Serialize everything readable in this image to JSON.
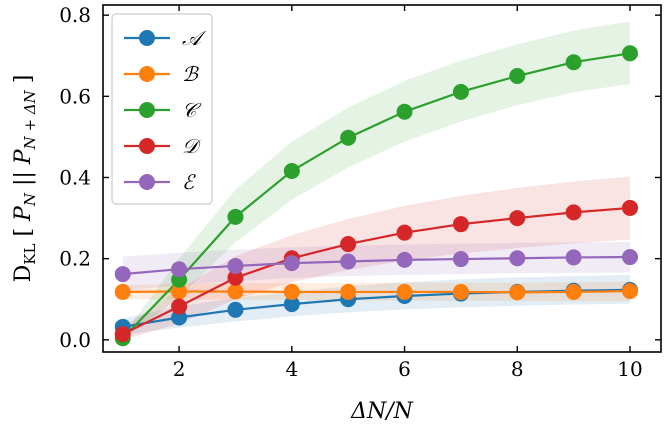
{
  "chart_data": {
    "type": "line",
    "x": [
      1,
      2,
      3,
      4,
      5,
      6,
      7,
      8,
      9,
      10
    ],
    "xlim": [
      0.65,
      10.55
    ],
    "ylim": [
      -0.03,
      0.825
    ],
    "xticks": [
      2,
      4,
      6,
      8,
      10
    ],
    "yticks": [
      0.0,
      0.2,
      0.4,
      0.6,
      0.8
    ],
    "xtick_labels": [
      "2",
      "4",
      "6",
      "8",
      "10"
    ],
    "ytick_labels": [
      "0.0",
      "0.2",
      "0.4",
      "0.6",
      "0.8"
    ],
    "xlabel": "ΔN/N",
    "ylabel": {
      "prefix": "D",
      "sub": "KL",
      "open": " [ ",
      "p1": "P",
      "p1_sub": "N",
      "mid": " || ",
      "p2": "P",
      "p2_sub": "N + ΔN",
      "close": " ]"
    },
    "legend_position": "top-left",
    "grid": false,
    "series": [
      {
        "name": "𝒜",
        "color": "#1f77b4",
        "values": [
          0.032,
          0.055,
          0.074,
          0.088,
          0.1,
          0.108,
          0.114,
          0.118,
          0.121,
          0.123
        ],
        "lower": [
          0.012,
          0.03,
          0.045,
          0.058,
          0.068,
          0.075,
          0.08,
          0.084,
          0.087,
          0.089
        ],
        "upper": [
          0.052,
          0.082,
          0.103,
          0.118,
          0.132,
          0.142,
          0.149,
          0.154,
          0.157,
          0.16
        ]
      },
      {
        "name": "ℬ",
        "color": "#ff7f0e",
        "values": [
          0.118,
          0.119,
          0.119,
          0.118,
          0.118,
          0.118,
          0.118,
          0.117,
          0.118,
          0.12
        ],
        "lower": [
          0.1,
          0.1,
          0.099,
          0.098,
          0.097,
          0.097,
          0.096,
          0.096,
          0.095,
          0.095
        ],
        "upper": [
          0.135,
          0.138,
          0.139,
          0.14,
          0.14,
          0.141,
          0.141,
          0.141,
          0.142,
          0.143
        ]
      },
      {
        "name": "𝒞",
        "color": "#2ca02c",
        "values": [
          0.004,
          0.148,
          0.303,
          0.416,
          0.498,
          0.562,
          0.611,
          0.65,
          0.684,
          0.706
        ],
        "lower": [
          0.0,
          0.105,
          0.24,
          0.345,
          0.425,
          0.488,
          0.538,
          0.578,
          0.61,
          0.63
        ],
        "upper": [
          0.01,
          0.2,
          0.37,
          0.488,
          0.572,
          0.638,
          0.688,
          0.728,
          0.762,
          0.785
        ]
      },
      {
        "name": "𝒟",
        "color": "#d62728",
        "values": [
          0.014,
          0.082,
          0.153,
          0.201,
          0.236,
          0.264,
          0.285,
          0.3,
          0.314,
          0.325
        ],
        "lower": [
          0.0,
          0.04,
          0.1,
          0.142,
          0.172,
          0.195,
          0.213,
          0.226,
          0.238,
          0.247
        ],
        "upper": [
          0.03,
          0.125,
          0.206,
          0.258,
          0.298,
          0.33,
          0.355,
          0.374,
          0.39,
          0.402
        ]
      },
      {
        "name": "ℰ",
        "color": "#9467bd",
        "values": [
          0.162,
          0.174,
          0.182,
          0.189,
          0.193,
          0.197,
          0.199,
          0.201,
          0.203,
          0.204
        ],
        "lower": [
          0.12,
          0.135,
          0.145,
          0.152,
          0.157,
          0.16,
          0.162,
          0.164,
          0.165,
          0.166
        ],
        "upper": [
          0.205,
          0.215,
          0.222,
          0.228,
          0.232,
          0.235,
          0.237,
          0.239,
          0.24,
          0.241
        ]
      }
    ]
  }
}
